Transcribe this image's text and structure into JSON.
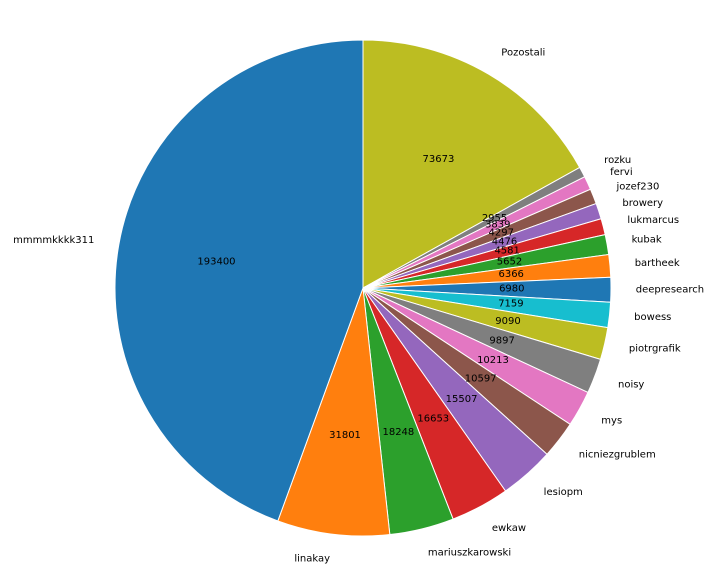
{
  "chart_data": {
    "type": "pie",
    "start_angle_deg": 90,
    "direction": "clockwise",
    "slices": [
      {
        "label": "Pozostali",
        "value": 73673,
        "color": "#bcbd22"
      },
      {
        "label": "rozku",
        "value": 2955,
        "color": "#7f7f7f"
      },
      {
        "label": "fervi",
        "value": 3839,
        "color": "#e377c2"
      },
      {
        "label": "jozef230",
        "value": 4297,
        "color": "#8c564b"
      },
      {
        "label": "browery",
        "value": 4476,
        "color": "#9467bd"
      },
      {
        "label": "lukmarcus",
        "value": 4581,
        "color": "#d62728"
      },
      {
        "label": "kubak",
        "value": 5652,
        "color": "#2ca02c"
      },
      {
        "label": "bartheek",
        "value": 6366,
        "color": "#ff7f0e"
      },
      {
        "label": "deepresearch",
        "value": 6980,
        "color": "#1f77b4"
      },
      {
        "label": "bowess",
        "value": 7159,
        "color": "#17becf"
      },
      {
        "label": "piotrgrafik",
        "value": 9090,
        "color": "#bcbd22"
      },
      {
        "label": "noisy",
        "value": 9897,
        "color": "#7f7f7f"
      },
      {
        "label": "mys",
        "value": 10213,
        "color": "#e377c2"
      },
      {
        "label": "nicniezgrublem",
        "value": 10597,
        "color": "#8c564b"
      },
      {
        "label": "lesiopm",
        "value": 15507,
        "color": "#9467bd"
      },
      {
        "label": "ewkaw",
        "value": 16653,
        "color": "#d62728"
      },
      {
        "label": "mariuszkarowski",
        "value": 18248,
        "color": "#2ca02c"
      },
      {
        "label": "linakay",
        "value": 31801,
        "color": "#ff7f0e"
      },
      {
        "label": "mmmmkkkk311",
        "value": 193400,
        "color": "#1f77b4"
      }
    ]
  }
}
